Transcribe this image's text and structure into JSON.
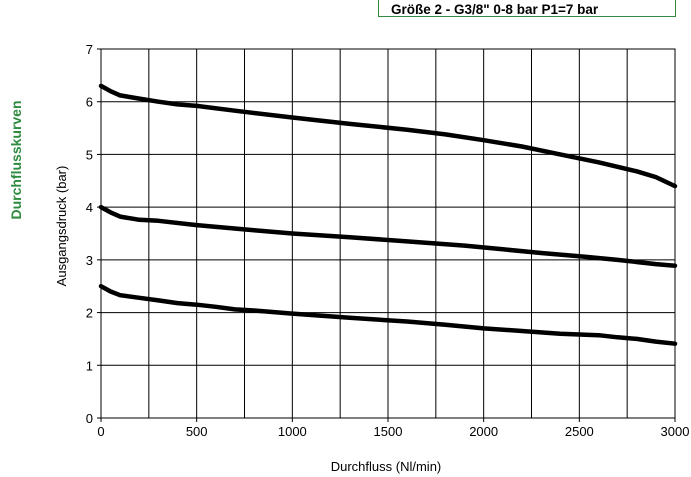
{
  "side_title": "Durchflusskurven",
  "header_title": "Größe 2 - G3/8\" 0-8 bar P1=7 bar",
  "colors": {
    "accent": "#2e8b3f",
    "line": "#000000",
    "grid": "#000000"
  },
  "chart_data": {
    "type": "line",
    "xlabel": "Durchfluss (Nl/min)",
    "ylabel": "Ausgangsdruck (bar)",
    "xlim": [
      0,
      3000
    ],
    "ylim": [
      0,
      7
    ],
    "x_ticks": [
      0,
      500,
      1000,
      1500,
      2000,
      2500,
      3000
    ],
    "y_ticks": [
      0,
      1,
      2,
      3,
      4,
      5,
      6,
      7
    ],
    "grid": true,
    "series": [
      {
        "x": [
          0,
          50,
          100,
          200,
          300,
          400,
          500,
          700,
          1000,
          1300,
          1600,
          1800,
          2000,
          2200,
          2400,
          2600,
          2800,
          2900,
          3000
        ],
        "y": [
          6.3,
          6.2,
          6.12,
          6.06,
          6.0,
          5.95,
          5.92,
          5.83,
          5.7,
          5.58,
          5.47,
          5.38,
          5.27,
          5.15,
          5.0,
          4.85,
          4.68,
          4.57,
          4.4
        ]
      },
      {
        "x": [
          0,
          50,
          100,
          200,
          300,
          500,
          800,
          1000,
          1300,
          1600,
          1900,
          2100,
          2300,
          2500,
          2700,
          2900,
          3000
        ],
        "y": [
          4.0,
          3.9,
          3.82,
          3.76,
          3.74,
          3.66,
          3.56,
          3.5,
          3.43,
          3.35,
          3.27,
          3.2,
          3.13,
          3.07,
          3.0,
          2.92,
          2.89
        ]
      },
      {
        "x": [
          0,
          50,
          100,
          200,
          300,
          400,
          500,
          600,
          700,
          800,
          1000,
          1300,
          1600,
          1800,
          2000,
          2200,
          2400,
          2600,
          2700,
          2800,
          2900,
          3000
        ],
        "y": [
          2.5,
          2.4,
          2.33,
          2.28,
          2.23,
          2.18,
          2.15,
          2.11,
          2.06,
          2.04,
          1.98,
          1.9,
          1.83,
          1.77,
          1.7,
          1.65,
          1.6,
          1.57,
          1.53,
          1.5,
          1.45,
          1.41
        ]
      }
    ]
  }
}
